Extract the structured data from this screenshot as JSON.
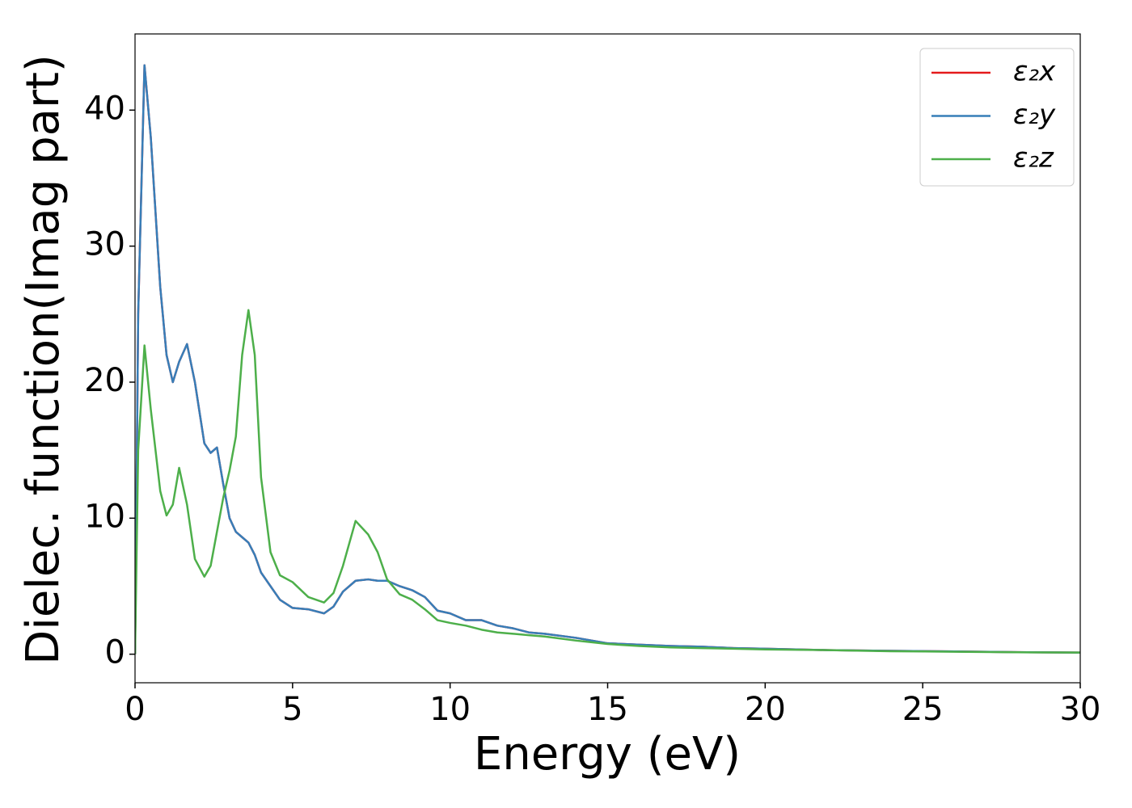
{
  "chart_data": {
    "type": "line",
    "xlabel": "Energy (eV)",
    "ylabel": "Dielec. function(Imag part)",
    "x": [
      0,
      0.1,
      0.3,
      0.5,
      0.8,
      1.0,
      1.2,
      1.4,
      1.65,
      1.9,
      2.2,
      2.4,
      2.6,
      2.8,
      3.0,
      3.2,
      3.4,
      3.6,
      3.8,
      4.0,
      4.3,
      4.6,
      5.0,
      5.5,
      6.0,
      6.3,
      6.6,
      7.0,
      7.4,
      7.7,
      8.0,
      8.4,
      8.8,
      9.2,
      9.6,
      10,
      10.5,
      11,
      11.5,
      12,
      12.5,
      13,
      14,
      15,
      16,
      17,
      18,
      19,
      20,
      22,
      24,
      26,
      28,
      30
    ],
    "series": [
      {
        "name": "ε₂x",
        "color": "#e41a1c",
        "values": [
          0,
          25,
          43.3,
          38,
          27,
          22,
          20,
          21.5,
          22.8,
          20,
          15.5,
          14.8,
          15.2,
          12.5,
          10,
          9,
          8.6,
          8.2,
          7.3,
          6,
          5,
          4,
          3.4,
          3.3,
          3.0,
          3.5,
          4.6,
          5.4,
          5.5,
          5.4,
          5.4,
          5,
          4.7,
          4.2,
          3.2,
          3.0,
          2.5,
          2.5,
          2.1,
          1.9,
          1.6,
          1.5,
          1.2,
          0.8,
          0.7,
          0.6,
          0.55,
          0.45,
          0.4,
          0.3,
          0.25,
          0.2,
          0.15,
          0.12
        ]
      },
      {
        "name": "ε₂y",
        "color": "#377eb8",
        "values": [
          0,
          25,
          43.3,
          38,
          27,
          22,
          20,
          21.5,
          22.8,
          20,
          15.5,
          14.8,
          15.2,
          12.5,
          10,
          9,
          8.6,
          8.2,
          7.3,
          6,
          5,
          4,
          3.4,
          3.3,
          3.0,
          3.5,
          4.6,
          5.4,
          5.5,
          5.4,
          5.4,
          5,
          4.7,
          4.2,
          3.2,
          3.0,
          2.5,
          2.5,
          2.1,
          1.9,
          1.6,
          1.5,
          1.2,
          0.8,
          0.7,
          0.6,
          0.55,
          0.45,
          0.4,
          0.3,
          0.25,
          0.2,
          0.15,
          0.12
        ]
      },
      {
        "name": "ε₂z",
        "color": "#4daf4a",
        "values": [
          0,
          15,
          22.7,
          18,
          12,
          10.2,
          11,
          13.7,
          11,
          7,
          5.7,
          6.5,
          9,
          11.5,
          13.5,
          16,
          22,
          25.3,
          22,
          13,
          7.5,
          5.8,
          5.3,
          4.2,
          3.8,
          4.5,
          6.5,
          9.8,
          8.8,
          7.5,
          5.5,
          4.4,
          4.0,
          3.3,
          2.5,
          2.3,
          2.1,
          1.8,
          1.6,
          1.5,
          1.4,
          1.3,
          1.0,
          0.75,
          0.6,
          0.5,
          0.45,
          0.4,
          0.35,
          0.3,
          0.22,
          0.18,
          0.14,
          0.12
        ]
      }
    ],
    "xlim": [
      0,
      30
    ],
    "xticks": [
      0,
      5,
      10,
      15,
      20,
      25,
      30
    ],
    "ylim": [
      -2.1,
      45.6
    ],
    "yticks": [
      0,
      10,
      20,
      30,
      40
    ],
    "legend": "upper right",
    "grid": false
  }
}
